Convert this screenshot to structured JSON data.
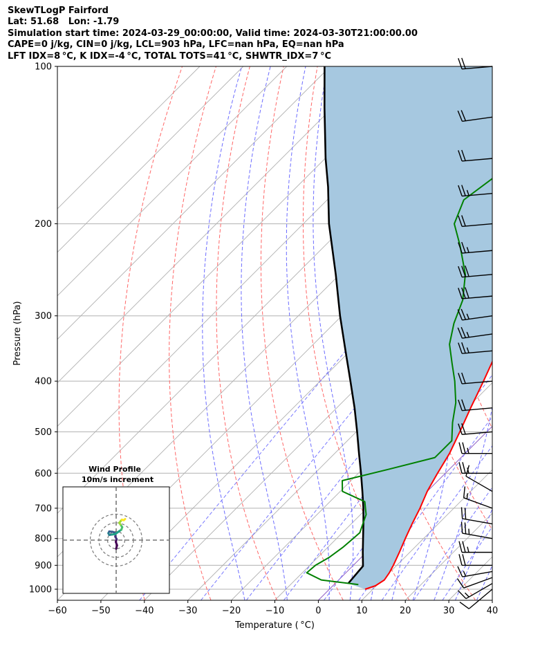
{
  "header": {
    "line1": "SkewTLogP Fairford",
    "line2": "Lat: 51.68   Lon: -1.79",
    "line3": "Simulation start time: 2024-03-29_00:00:00, Valid time: 2024-03-30T21:00:00.00",
    "line4": "CAPE=0 j/kg, CIN=0 j/kg, LCL=903 hPa, LFC=nan hPa, EQ=nan hPa",
    "line5": "LFT IDX=8 °C, K IDX=-4 °C, TOTAL TOTS=41 °C, SHWTR_IDX=7 °C"
  },
  "chart_data": {
    "type": "line",
    "xlabel": "Temperature ( °C)",
    "ylabel": "Pressure (hPa)",
    "xlim": [
      -60,
      40
    ],
    "ylim": [
      1050,
      100
    ],
    "y_scale": "log",
    "x_ticks": [
      "−60",
      "−50",
      "−40",
      "−30",
      "−20",
      "−10",
      "0",
      "10",
      "20",
      "30",
      "40"
    ],
    "y_ticks": [
      "1000",
      "900",
      "800",
      "700",
      "600",
      "500",
      "400",
      "300",
      "200",
      "100"
    ],
    "grid": true,
    "temperature_profile": {
      "color": "#ff0000",
      "p": [
        1000,
        985,
        960,
        930,
        900,
        850,
        800,
        750,
        700,
        650,
        600,
        550,
        500,
        450,
        400,
        350,
        325,
        300,
        280,
        260,
        250,
        220,
        200,
        180,
        150,
        130,
        110,
        100
      ],
      "t": [
        8.2,
        9.8,
        10.5,
        10.0,
        9.2,
        7.6,
        5.8,
        4.0,
        2.2,
        0.0,
        -1.8,
        -3.6,
        -6.2,
        -9.2,
        -12.4,
        -16.2,
        -17.2,
        -16.4,
        -15.0,
        -13.7,
        -12.8,
        -7.0,
        2.0,
        10.0,
        22.4,
        31.3,
        41.5,
        47.1
      ]
    },
    "dewpoint_profile": {
      "color": "#008000",
      "p": [
        980,
        960,
        930,
        900,
        870,
        830,
        780,
        720,
        680,
        650,
        620,
        590,
        560,
        520,
        480,
        440,
        400,
        370,
        340,
        310,
        280,
        250,
        220,
        200,
        180,
        160,
        130,
        100
      ],
      "t": [
        5.6,
        -4.0,
        -9.0,
        -8.7,
        -7.4,
        -6.5,
        -6.0,
        -8.7,
        -12.0,
        -19.5,
        -22.0,
        -14.0,
        -6.0,
        -6.0,
        -10.0,
        -13.8,
        -19.0,
        -23.7,
        -28.7,
        -32.5,
        -35.8,
        -41.1,
        -49.0,
        -55.3,
        -58.6,
        -56.5,
        -48.1,
        -33.9
      ]
    },
    "parcel_profile": {
      "color": "#000000",
      "p": [
        975,
        903,
        850,
        800,
        750,
        700,
        650,
        600,
        550,
        500,
        450,
        400,
        350,
        300,
        250,
        200,
        170,
        150,
        120,
        100
      ],
      "t": [
        3.0,
        2.4,
        -0.8,
        -3.9,
        -7.2,
        -10.8,
        -14.9,
        -19.4,
        -24.4,
        -29.8,
        -35.9,
        -43.0,
        -51.1,
        -60.4,
        -70.9,
        -84.1,
        -92.8,
        -99.9,
        -111.8,
        -121.3
      ]
    },
    "cape_cin_shading": {
      "color": "#a6c8e0",
      "between": [
        "temperature_profile",
        "parcel_profile"
      ]
    },
    "reference_lines": {
      "dry_adiabats": {
        "color": "#ff6666",
        "style": "dashed",
        "theta_K": [
          230,
          245,
          260,
          275,
          290,
          305,
          320,
          335,
          350,
          365
        ]
      },
      "moist_adiabats": {
        "color": "#6b6bff",
        "style": "dashed",
        "t_at_1000hPa": [
          -20,
          -10,
          0,
          5,
          10,
          15,
          20,
          25,
          30,
          35
        ]
      },
      "mixing_ratio_lines": {
        "color": "#7777ff",
        "style": "dashed",
        "g_per_kg": [
          0.1,
          0.4,
          1.0,
          2.0,
          4.0,
          7.0,
          10.0,
          16.0,
          24.0
        ]
      },
      "skewed_isotherms": {
        "color": "#b0b0b0",
        "step_C": 10
      },
      "freezing_line": {
        "color": "#9966cc"
      }
    },
    "wind_barbs": {
      "x_temperature": 40,
      "p": [
        1000,
        975,
        950,
        925,
        900,
        850,
        800,
        750,
        700,
        650,
        600,
        550,
        500,
        450,
        400,
        350,
        325,
        300,
        275,
        250,
        225,
        200,
        175,
        150,
        125,
        100
      ],
      "speed_kt": [
        12,
        15,
        12,
        15,
        20,
        25,
        25,
        20,
        15,
        10,
        25,
        25,
        20,
        20,
        20,
        25,
        25,
        25,
        30,
        30,
        25,
        20,
        25,
        20,
        20,
        20
      ],
      "direction_deg": [
        230,
        240,
        250,
        260,
        270,
        270,
        280,
        280,
        290,
        300,
        270,
        270,
        265,
        265,
        265,
        265,
        262,
        262,
        265,
        265,
        265,
        265,
        265,
        265,
        262,
        265
      ]
    },
    "inset": {
      "title": "Wind Profile",
      "subtitle": "10m/s increment",
      "rings_ms": [
        10,
        20,
        30
      ],
      "hodograph_uv_ms": [
        [
          0,
          -5
        ],
        [
          0.5,
          -3
        ],
        [
          -0.2,
          -1
        ],
        [
          0.3,
          0.5
        ],
        [
          -0.5,
          2
        ],
        [
          -0.3,
          4
        ],
        [
          -2,
          4.8
        ],
        [
          -4,
          5
        ],
        [
          -4.5,
          4
        ],
        [
          -4,
          3
        ],
        [
          -2.5,
          3.2
        ],
        [
          -0.5,
          3.5
        ],
        [
          1.5,
          5
        ],
        [
          3,
          6
        ],
        [
          3.5,
          7.5
        ],
        [
          2.5,
          9
        ],
        [
          1.8,
          10
        ],
        [
          2.6,
          11
        ],
        [
          3.3,
          11.8
        ],
        [
          4.4,
          11.5
        ],
        [
          5.2,
          12.2
        ]
      ]
    }
  }
}
